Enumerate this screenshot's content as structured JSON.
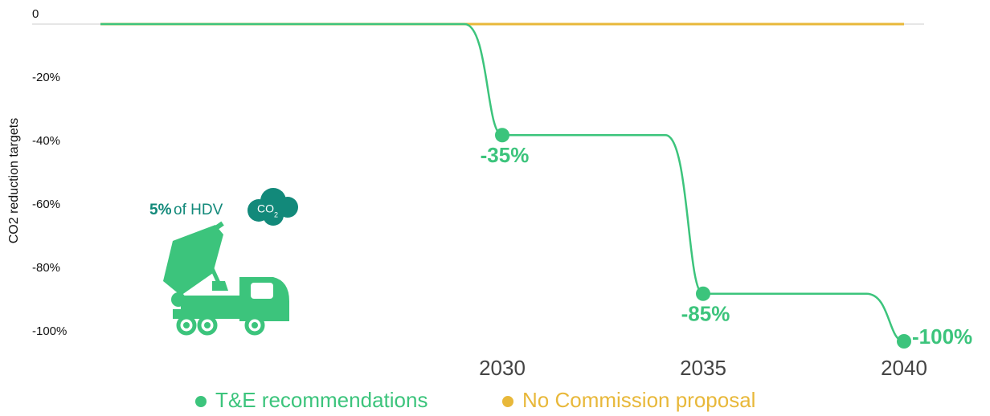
{
  "chart_data": {
    "type": "line",
    "y_label": "CO2 reduction targets",
    "categories": [
      null,
      null,
      "2030",
      "2035",
      "2040"
    ],
    "series": [
      {
        "name": "T&E recommendations",
        "color": "#3cc47c",
        "values": [
          0,
          0,
          -35,
          -85,
          -100
        ],
        "value_labels": [
          null,
          null,
          "-35%",
          "-85%",
          "-100%"
        ]
      },
      {
        "name": "No Commission proposal",
        "color": "#e8b83a",
        "values": [
          0,
          0,
          0,
          0,
          0
        ]
      }
    ],
    "ylim": [
      -100,
      0
    ],
    "yticks": [
      0,
      {
        "value": -20,
        "label": "-20%"
      },
      {
        "value": -40,
        "label": "-40%"
      },
      {
        "value": -60,
        "label": "-60%"
      },
      {
        "value": -80,
        "label": "-80%"
      },
      {
        "value": -100,
        "label": "-100%"
      }
    ],
    "annotation": {
      "share": "5%",
      "text": "of HDV",
      "cloud": "CO",
      "cloud_sub": "2"
    }
  }
}
